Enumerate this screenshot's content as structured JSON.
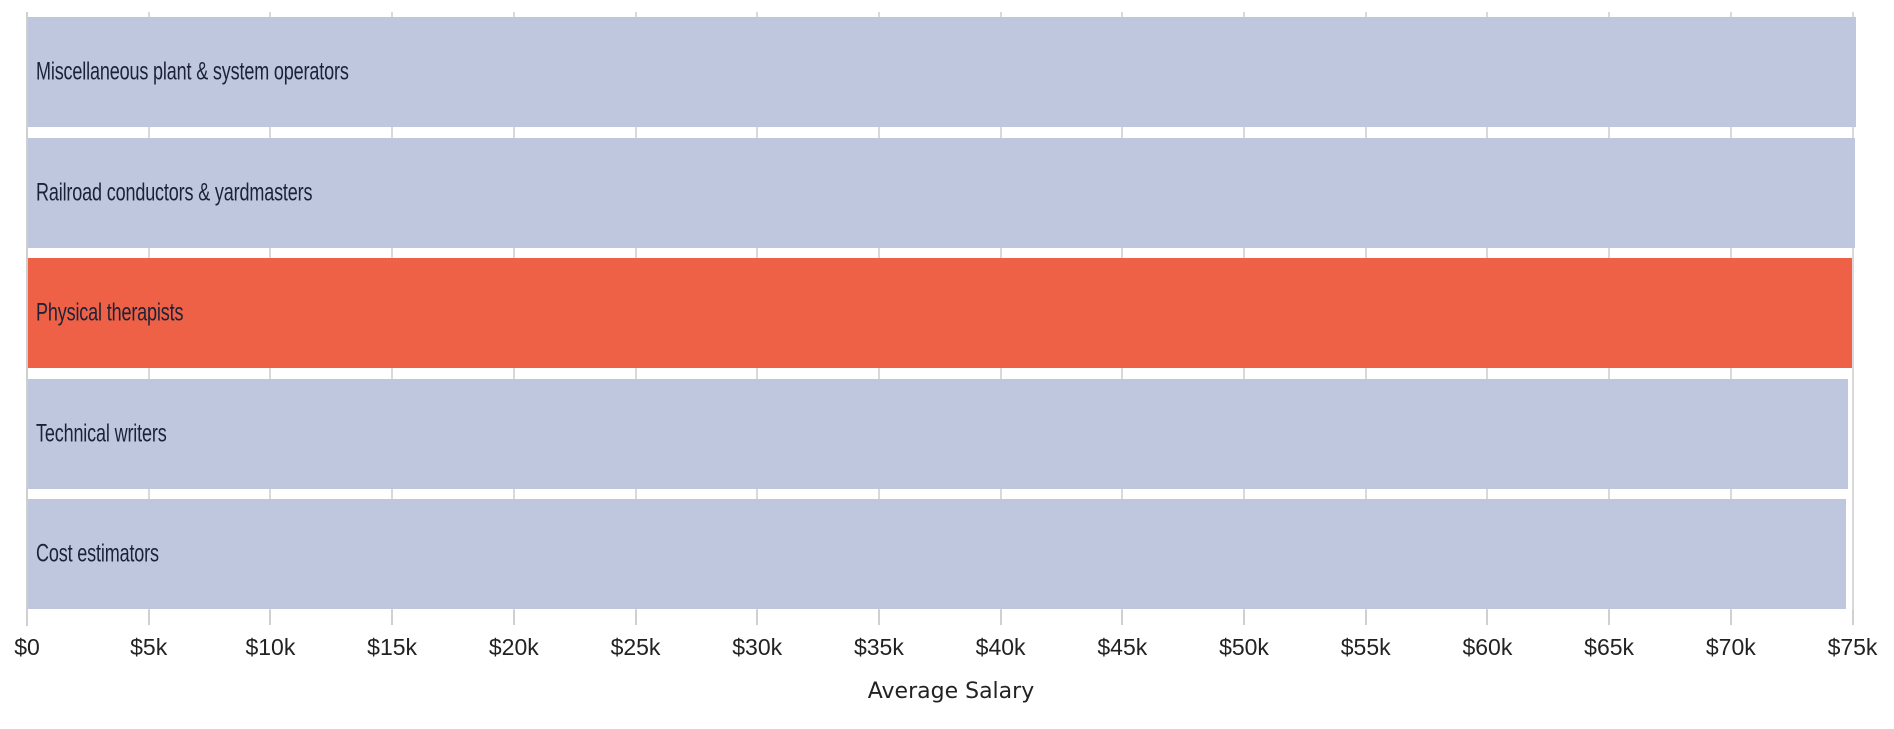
{
  "chart_data": {
    "type": "bar",
    "orientation": "horizontal",
    "title": "",
    "xlabel": "Average Salary",
    "ylabel": "",
    "xlim": [
      0,
      75000
    ],
    "grid": true,
    "legend": null,
    "categories": [
      "Miscellaneous plant & system operators",
      "Railroad conductors & yardmasters",
      "Physical therapists",
      "Technical writers",
      "Cost estimators"
    ],
    "values": [
      75150,
      75100,
      74970,
      74800,
      74750
    ],
    "highlighted_category": "Physical therapists",
    "x_ticks": [
      0,
      5000,
      10000,
      15000,
      20000,
      25000,
      30000,
      35000,
      40000,
      45000,
      50000,
      55000,
      60000,
      65000,
      70000,
      75000
    ],
    "x_tick_labels": [
      "$0",
      "$5k",
      "$10k",
      "$15k",
      "$20k",
      "$25k",
      "$30k",
      "$35k",
      "$40k",
      "$45k",
      "$50k",
      "$55k",
      "$60k",
      "$65k",
      "$70k",
      "$75k"
    ]
  },
  "colors": {
    "bar_default": "#BFC7DF",
    "bar_highlight": "#EE6146",
    "label_text": "#1B2238",
    "gridline": "#D9D9D9"
  },
  "axis": {
    "x_title": "Average Salary"
  }
}
